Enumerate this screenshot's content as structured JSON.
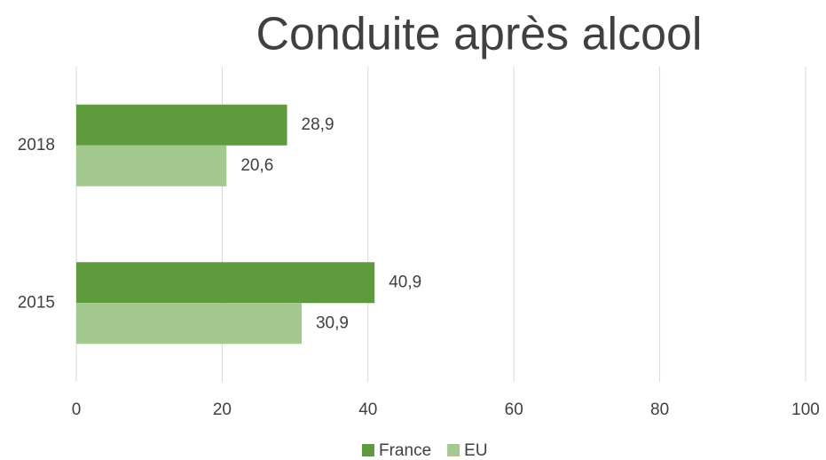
{
  "chart_data": {
    "type": "hbar",
    "title": "Conduite après alcool",
    "categories": [
      "2018",
      "2015"
    ],
    "series": [
      {
        "name": "France",
        "color": "#5f9a3e",
        "values": [
          28.9,
          40.9
        ],
        "value_labels": [
          "28,9",
          "40,9"
        ]
      },
      {
        "name": "EU",
        "color": "#a3c990",
        "values": [
          20.6,
          30.9
        ],
        "value_labels": [
          "20,6",
          "30,9"
        ]
      }
    ],
    "xlim": [
      0,
      100
    ],
    "xticks": [
      0,
      20,
      40,
      60,
      80,
      100
    ],
    "grid": true,
    "legend": "bottom"
  }
}
